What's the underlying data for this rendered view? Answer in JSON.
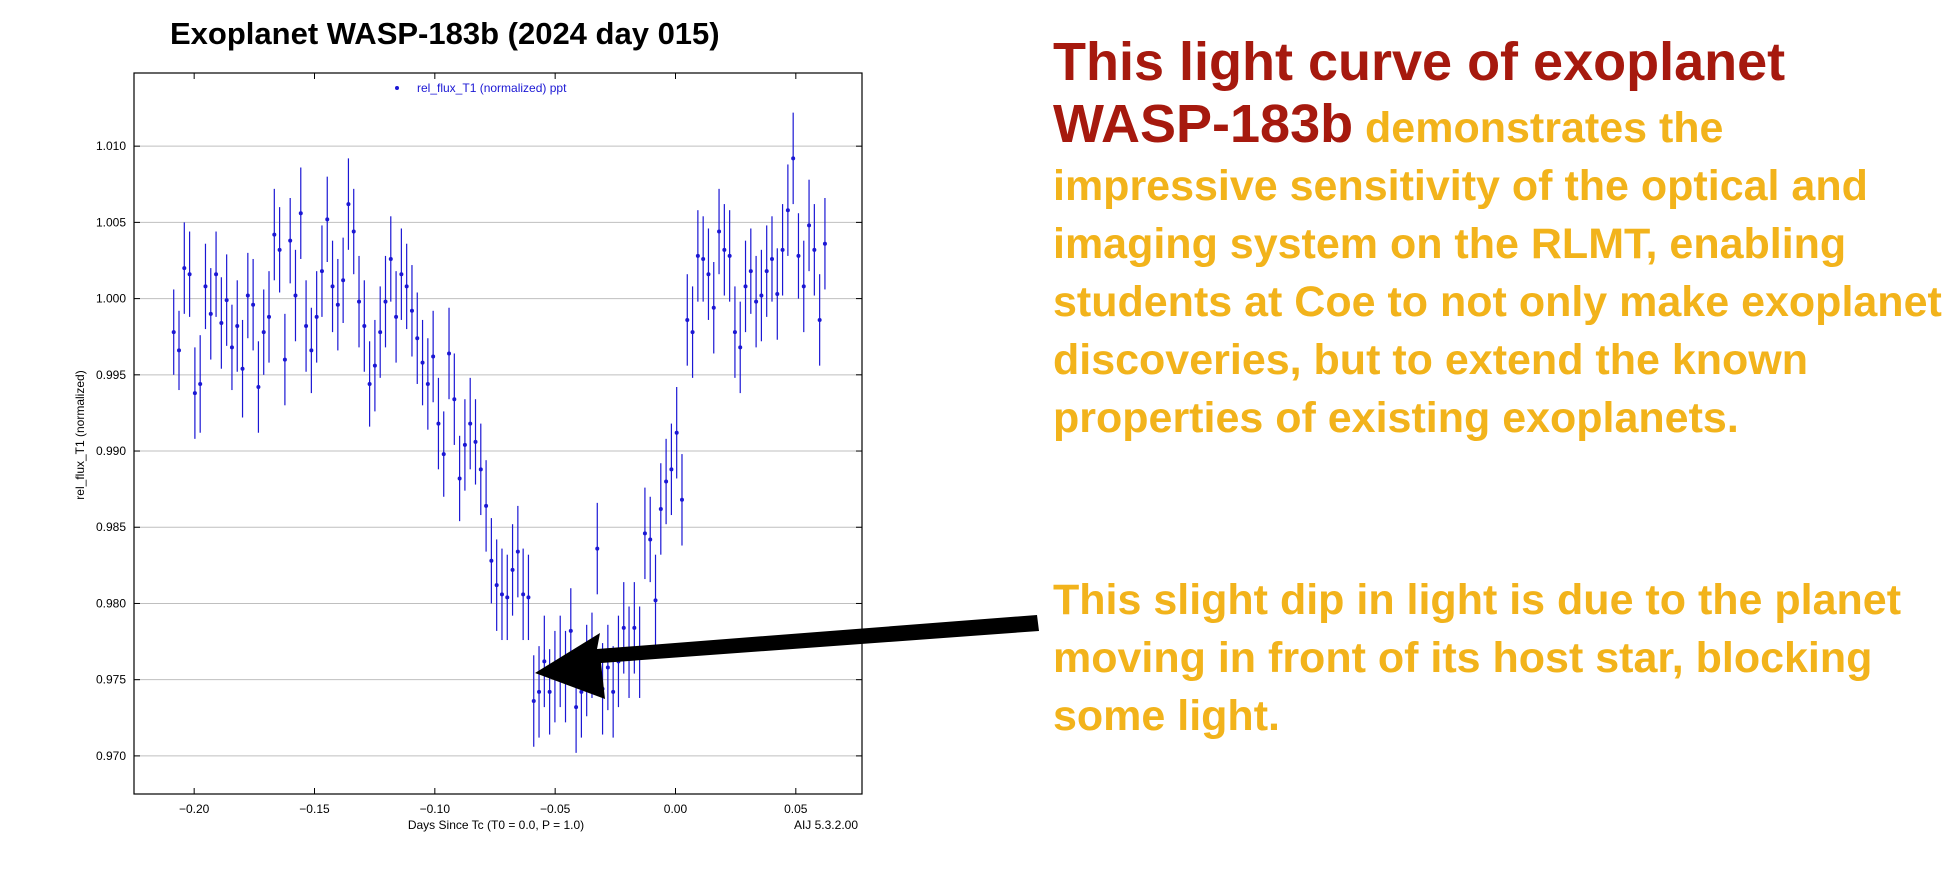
{
  "chart_data": {
    "type": "scatter",
    "title": "Exoplanet WASP-183b (2024 day 015)",
    "xlabel": "Days Since Tc (T0 = 0.0, P = 1.0)",
    "ylabel": "rel_flux_T1 (normalized)",
    "legend": "rel_flux_T1 (normalized) ppt",
    "legend_position": "top-center",
    "version_label": "AIJ 5.3.2.00",
    "xlim": [
      -0.225,
      0.0775
    ],
    "ylim": [
      0.9675,
      1.0148
    ],
    "xticks": [
      -0.2,
      -0.15,
      -0.1,
      -0.05,
      0.0,
      0.05
    ],
    "xtick_labels": [
      "−0.20",
      "−0.15",
      "−0.10",
      "−0.05",
      "0.00",
      "0.05"
    ],
    "yticks": [
      0.97,
      0.975,
      0.98,
      0.985,
      0.99,
      0.995,
      1.0,
      1.005,
      1.01
    ],
    "ytick_labels": [
      "0.970",
      "0.975",
      "0.980",
      "0.985",
      "0.990",
      "0.995",
      "1.000",
      "1.005",
      "1.010"
    ],
    "grid": true,
    "series": [
      {
        "name": "rel_flux_T1 (normalized) ppt",
        "color": "#1b17d4",
        "x": [
          -0.2085,
          -0.2063,
          -0.2041,
          -0.2019,
          -0.1997,
          -0.1975,
          -0.1953,
          -0.1931,
          -0.1909,
          -0.1887,
          -0.1865,
          -0.1843,
          -0.1821,
          -0.1799,
          -0.1777,
          -0.1755,
          -0.1733,
          -0.1711,
          -0.1689,
          -0.1667,
          -0.1645,
          -0.1623,
          -0.1601,
          -0.1579,
          -0.1557,
          -0.1535,
          -0.1513,
          -0.1491,
          -0.1469,
          -0.1447,
          -0.1425,
          -0.1403,
          -0.1381,
          -0.1359,
          -0.1337,
          -0.1315,
          -0.1293,
          -0.1271,
          -0.1249,
          -0.1227,
          -0.1205,
          -0.1183,
          -0.1161,
          -0.1139,
          -0.1117,
          -0.1095,
          -0.1073,
          -0.1051,
          -0.1029,
          -0.1007,
          -0.0985,
          -0.0963,
          -0.0941,
          -0.0919,
          -0.0897,
          -0.0875,
          -0.0853,
          -0.0831,
          -0.0809,
          -0.0787,
          -0.0765,
          -0.0743,
          -0.0721,
          -0.0699,
          -0.0677,
          -0.0655,
          -0.0633,
          -0.0611,
          -0.0589,
          -0.0567,
          -0.0545,
          -0.0523,
          -0.0501,
          -0.0479,
          -0.0457,
          -0.0435,
          -0.0413,
          -0.0391,
          -0.0369,
          -0.0347,
          -0.0325,
          -0.0303,
          -0.0281,
          -0.0259,
          -0.0237,
          -0.0215,
          -0.0193,
          -0.0171,
          -0.0149,
          -0.0127,
          -0.0105,
          -0.0083,
          -0.0061,
          -0.0039,
          -0.0017,
          0.0005,
          0.0027,
          0.0049,
          0.0071,
          0.0093,
          0.0115,
          0.0137,
          0.0159,
          0.0181,
          0.0203,
          0.0225,
          0.0247,
          0.0269,
          0.0291,
          0.0313,
          0.0335,
          0.0357,
          0.0379,
          0.0401,
          0.0423,
          0.0445,
          0.0467,
          0.0489,
          0.0511,
          0.0533,
          0.0555,
          0.0577,
          0.0599,
          0.0621
        ],
        "y": [
          0.9978,
          0.9966,
          1.002,
          1.0016,
          0.9938,
          0.9944,
          1.0008,
          0.999,
          1.0016,
          0.9984,
          0.9999,
          0.9968,
          0.9982,
          0.9954,
          1.0002,
          0.9996,
          0.9942,
          0.9978,
          0.9988,
          1.0042,
          1.0032,
          0.996,
          1.0038,
          1.0002,
          1.0056,
          0.9982,
          0.9966,
          0.9988,
          1.0018,
          1.0052,
          1.0008,
          0.9996,
          1.0012,
          1.0062,
          1.0044,
          0.9998,
          0.9982,
          0.9944,
          0.9956,
          0.9978,
          0.9998,
          1.0026,
          0.9988,
          1.0016,
          1.0008,
          0.9992,
          0.9974,
          0.9958,
          0.9944,
          0.9962,
          0.9918,
          0.9898,
          0.9964,
          0.9934,
          0.9882,
          0.9904,
          0.9918,
          0.9906,
          0.9888,
          0.9864,
          0.9828,
          0.9812,
          0.9806,
          0.9804,
          0.9822,
          0.9834,
          0.9806,
          0.9804,
          0.9736,
          0.9742,
          0.9762,
          0.9742,
          0.9752,
          0.9762,
          0.9752,
          0.9782,
          0.9732,
          0.9742,
          0.9756,
          0.9766,
          0.9836,
          0.9744,
          0.9758,
          0.9742,
          0.9762,
          0.9784,
          0.9768,
          0.9784,
          0.9768,
          0.9846,
          0.9842,
          0.9802,
          0.9862,
          0.988,
          0.9888,
          0.9912,
          0.9868,
          0.9986,
          0.9978,
          1.0028,
          1.0026,
          1.0016,
          0.9994,
          1.0044,
          1.0032,
          1.0028,
          0.9978,
          0.9968,
          1.0008,
          1.0018,
          0.9998,
          1.0002,
          1.0018,
          1.0026,
          1.0003,
          1.0032,
          1.0058,
          1.0092,
          1.0028,
          1.0008,
          1.0048,
          1.0032,
          0.9986,
          1.0036
        ],
        "err": [
          0.0028,
          0.0026,
          0.003,
          0.0028,
          0.003,
          0.0032,
          0.0028,
          0.003,
          0.0028,
          0.003,
          0.003,
          0.0028,
          0.003,
          0.0032,
          0.0028,
          0.003,
          0.003,
          0.0028,
          0.003,
          0.003,
          0.0028,
          0.003,
          0.0028,
          0.003,
          0.003,
          0.003,
          0.0028,
          0.003,
          0.003,
          0.0028,
          0.003,
          0.003,
          0.0028,
          0.003,
          0.0028,
          0.003,
          0.003,
          0.0028,
          0.003,
          0.003,
          0.003,
          0.0028,
          0.003,
          0.003,
          0.0028,
          0.003,
          0.003,
          0.0028,
          0.003,
          0.003,
          0.003,
          0.0028,
          0.003,
          0.003,
          0.0028,
          0.003,
          0.003,
          0.0028,
          0.003,
          0.003,
          0.0028,
          0.003,
          0.003,
          0.0028,
          0.003,
          0.003,
          0.003,
          0.0028,
          0.003,
          0.003,
          0.003,
          0.0028,
          0.003,
          0.003,
          0.003,
          0.0028,
          0.003,
          0.003,
          0.003,
          0.0028,
          0.003,
          0.003,
          0.0028,
          0.003,
          0.003,
          0.003,
          0.003,
          0.003,
          0.003,
          0.003,
          0.0028,
          0.003,
          0.003,
          0.0028,
          0.003,
          0.003,
          0.003,
          0.003,
          0.003,
          0.003,
          0.0028,
          0.003,
          0.003,
          0.0028,
          0.003,
          0.003,
          0.003,
          0.003,
          0.003,
          0.0028,
          0.003,
          0.003,
          0.003,
          0.0028,
          0.003,
          0.003,
          0.003,
          0.003,
          0.0028,
          0.003,
          0.003,
          0.003,
          0.003,
          0.003
        ]
      }
    ]
  },
  "caption": {
    "lead": "This light curve of exoplanet WASP-183b",
    "body": " demonstrates the impressive sensitivity of the optical and imaging system on the RLMT, enabling students at Coe to not only make exoplanet discoveries, but to extend the known properties of existing exoplanets.",
    "note": "This slight dip in light is due to the planet moving in front of its host star, blocking some light."
  },
  "colors": {
    "lead_text": "#a6190e",
    "body_text": "#f2b31b",
    "points": "#1b17d4",
    "grid": "#bfbfbf",
    "arrow": "#000000"
  }
}
